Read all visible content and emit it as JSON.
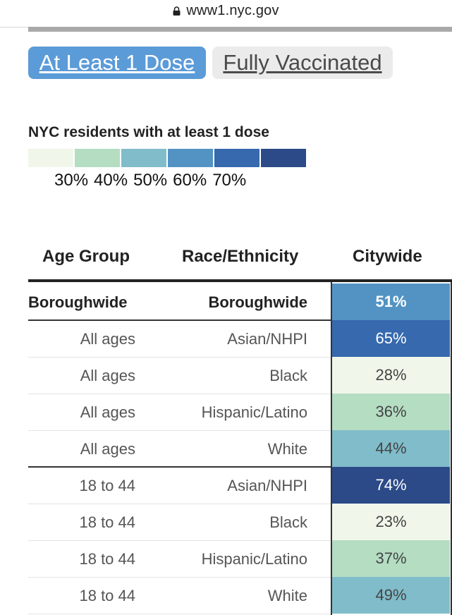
{
  "browser": {
    "url": "www1.nyc.gov"
  },
  "tabs": [
    {
      "label": "At Least 1 Dose",
      "active": true
    },
    {
      "label": "Fully Vaccinated",
      "active": false
    }
  ],
  "legend": {
    "title": "NYC residents with at least 1 dose",
    "colors": [
      "#f1f6ea",
      "#b4ddc2",
      "#80bcca",
      "#5293c3",
      "#3669ae",
      "#2c4a88"
    ],
    "labels": [
      "30%",
      "40%",
      "50%",
      "60%",
      "70%"
    ]
  },
  "table": {
    "headers": {
      "age": "Age Group",
      "race": "Race/Ethnicity",
      "value": "Citywide"
    },
    "rows": [
      {
        "age": "Boroughwide",
        "race": "Boroughwide",
        "value": "51%",
        "color": "#5293c3",
        "text_color": "#ffffff",
        "bold": true
      },
      {
        "age": "All ages",
        "race": "Asian/NHPI",
        "value": "65%",
        "color": "#3669ae",
        "text_color": "#ffffff"
      },
      {
        "age": "All ages",
        "race": "Black",
        "value": "28%",
        "color": "#f1f6ea",
        "text_color": "#444444"
      },
      {
        "age": "All ages",
        "race": "Hispanic/Latino",
        "value": "36%",
        "color": "#b4ddc2",
        "text_color": "#444444"
      },
      {
        "age": "All ages",
        "race": "White",
        "value": "44%",
        "color": "#80bcca",
        "text_color": "#444444"
      },
      {
        "age": "18 to 44",
        "race": "Asian/NHPI",
        "value": "74%",
        "color": "#2c4a88",
        "text_color": "#ffffff"
      },
      {
        "age": "18 to 44",
        "race": "Black",
        "value": "23%",
        "color": "#f1f6ea",
        "text_color": "#444444"
      },
      {
        "age": "18 to 44",
        "race": "Hispanic/Latino",
        "value": "37%",
        "color": "#b4ddc2",
        "text_color": "#444444"
      },
      {
        "age": "18 to 44",
        "race": "White",
        "value": "49%",
        "color": "#80bcca",
        "text_color": "#444444"
      }
    ]
  }
}
